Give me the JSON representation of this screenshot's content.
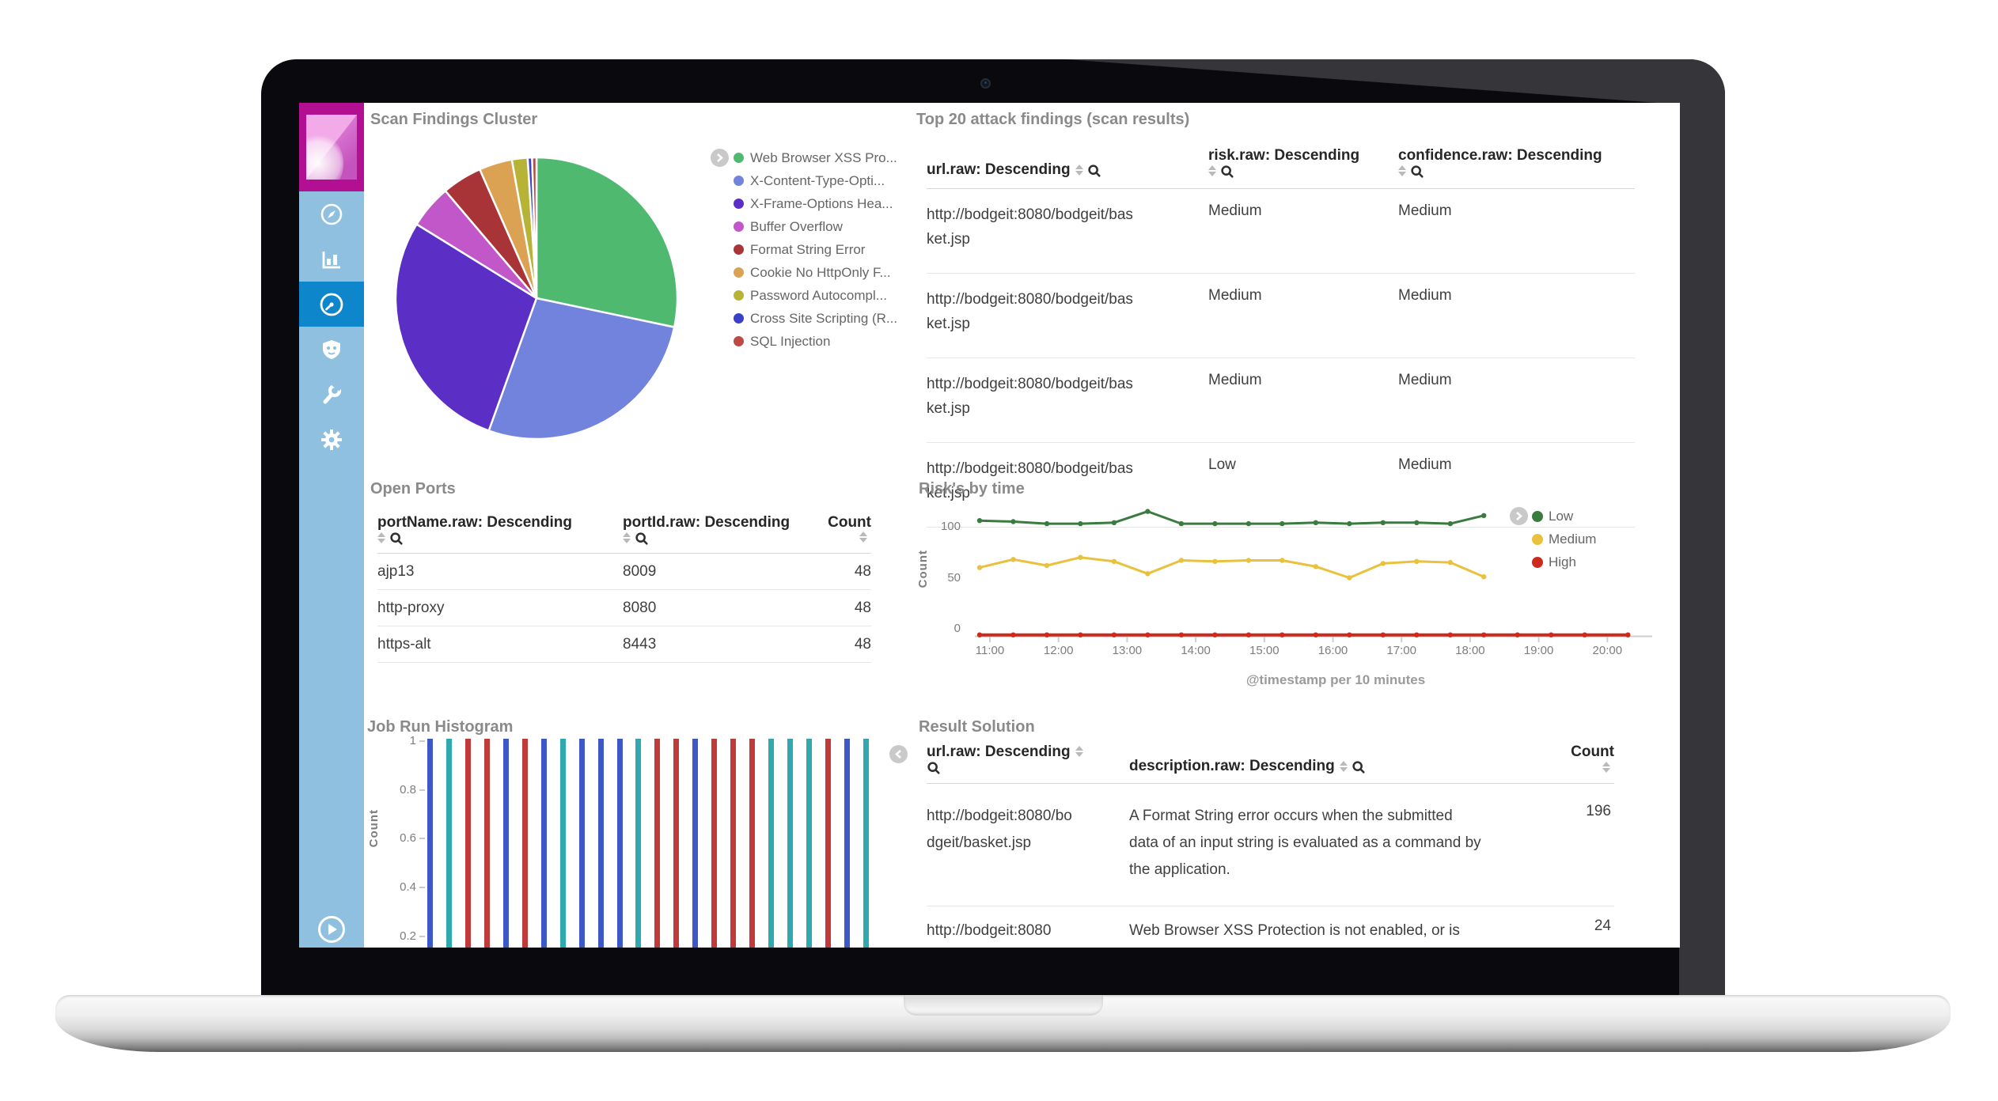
{
  "colors": {
    "sidebar_bg": "#8fc0e0",
    "sidebar_active": "#0d86cb",
    "logo_magenta": "#b20f92",
    "panel_title": "#8a8a8a"
  },
  "sidebar": {
    "icons": [
      "compass-icon",
      "bar-chart-icon",
      "gauge-icon",
      "badge-icon",
      "wrench-icon",
      "gear-icon"
    ],
    "active_index": 2
  },
  "panels": {
    "scan_findings": {
      "title": "Scan Findings Cluster"
    },
    "top20": {
      "title": "Top 20 attack findings (scan results)",
      "headers": {
        "url": "url.raw: Descending",
        "risk": "risk.raw: Descending",
        "confidence": "confidence.raw: Descending"
      },
      "rows": [
        {
          "url": "http://bodgeit:8080/bodgeit/basket.jsp",
          "risk": "Medium",
          "confidence": "Medium"
        },
        {
          "url": "http://bodgeit:8080/bodgeit/basket.jsp",
          "risk": "Medium",
          "confidence": "Medium"
        },
        {
          "url": "http://bodgeit:8080/bodgeit/basket.jsp",
          "risk": "Medium",
          "confidence": "Medium"
        },
        {
          "url": "http://bodgeit:8080/bodgeit/basket.jsp",
          "risk": "Low",
          "confidence": "Medium"
        }
      ]
    },
    "open_ports": {
      "title": "Open Ports",
      "headers": {
        "port_name": "portName.raw: Descending",
        "port_id": "portId.raw: Descending",
        "count": "Count"
      },
      "rows": [
        {
          "port_name": "ajp13",
          "port_id": "8009",
          "count": "48"
        },
        {
          "port_name": "http-proxy",
          "port_id": "8080",
          "count": "48"
        },
        {
          "port_name": "https-alt",
          "port_id": "8443",
          "count": "48"
        }
      ]
    },
    "risks": {
      "title": "Risk's by time"
    },
    "histogram": {
      "title": "Job Run Histogram"
    },
    "result_solution": {
      "title": "Result Solution",
      "headers": {
        "url": "url.raw: Descending",
        "description": "description.raw: Descending",
        "count": "Count"
      },
      "rows": [
        {
          "url": "http://bodgeit:8080/bodgeit/basket.jsp",
          "description": "A Format String error occurs when the submitted data of an input string is evaluated as a command by the application.",
          "count": "196"
        },
        {
          "url": "http://bodgeit:8080",
          "description": "Web Browser XSS Protection is not enabled, or is",
          "count": "24"
        }
      ]
    }
  },
  "chart_data": [
    {
      "type": "pie",
      "title": "Scan Findings Cluster",
      "labels": [
        "Web Browser XSS Pro...",
        "X-Content-Type-Opti...",
        "X-Frame-Options Hea...",
        "Buffer Overflow",
        "Format String Error",
        "Cookie No HttpOnly F...",
        "Password Autocompl...",
        "Cross Site Scripting (R...",
        "SQL Injection"
      ],
      "values": [
        28.3,
        27.2,
        28.3,
        5.0,
        4.6,
        3.8,
        1.8,
        0.5,
        0.5
      ],
      "colors": [
        "#4fba6f",
        "#7183dc",
        "#5b2ec5",
        "#c157c8",
        "#a93438",
        "#dca254",
        "#b7b336",
        "#3a41c8",
        "#bd4a47"
      ],
      "legend_position": "right"
    },
    {
      "type": "line",
      "title": "Risk's by time",
      "xlabel": "@timestamp per 10 minutes",
      "ylabel": "Count",
      "x_ticks": [
        "11:00",
        "12:00",
        "13:00",
        "14:00",
        "15:00",
        "16:00",
        "17:00",
        "18:00",
        "19:00",
        "20:00"
      ],
      "y_ticks": [
        0,
        50,
        100
      ],
      "ylim": [
        0,
        130
      ],
      "legend_position": "top-right",
      "series": [
        {
          "name": "Low",
          "color": "#3a7c40",
          "x": [
            10.85,
            11.34,
            11.83,
            12.32,
            12.81,
            13.3,
            13.79,
            14.28,
            14.77,
            15.26,
            15.75,
            16.24,
            16.73,
            17.22,
            17.71,
            18.2
          ],
          "y": [
            113,
            112,
            110,
            110,
            111,
            122,
            110,
            110,
            110,
            110,
            111,
            110,
            111,
            111,
            110,
            118
          ]
        },
        {
          "name": "Medium",
          "color": "#e9c13d",
          "x": [
            10.85,
            11.34,
            11.83,
            12.32,
            12.81,
            13.3,
            13.79,
            14.28,
            14.77,
            15.26,
            15.75,
            16.24,
            16.73,
            17.22,
            17.71,
            18.2
          ],
          "y": [
            67,
            75,
            69,
            77,
            73,
            61,
            74,
            73,
            74,
            74,
            68,
            57,
            71,
            73,
            72,
            58
          ]
        },
        {
          "name": "High",
          "color": "#cb2a1d",
          "x": [
            10.85,
            11.34,
            11.83,
            12.32,
            12.81,
            13.3,
            13.79,
            14.28,
            14.77,
            15.26,
            15.75,
            16.24,
            16.73,
            17.22,
            17.71,
            18.2,
            18.69,
            19.18,
            19.67,
            20.3
          ],
          "y": [
            1,
            1,
            1,
            1,
            1,
            1,
            1,
            1,
            1,
            1,
            1,
            1,
            1,
            1,
            1,
            1,
            1,
            1,
            1,
            1
          ]
        }
      ]
    },
    {
      "type": "bar",
      "title": "Job Run Histogram",
      "ylabel": "Count",
      "y_ticks": [
        1,
        0.8,
        0.6,
        0.4,
        0.2
      ],
      "values": [
        1,
        1,
        1,
        1,
        1,
        1,
        1,
        1,
        1,
        1,
        1,
        1,
        1,
        1,
        1,
        1,
        1,
        1,
        1,
        1,
        1,
        1,
        1,
        1
      ],
      "colors": [
        "#3e57c6",
        "#2fa9ae",
        "#bf3a38",
        "#bf3a38",
        "#3e57c6",
        "#bf3a38",
        "#3e57c6",
        "#2fa9ae",
        "#3e57c6",
        "#3e57c6",
        "#3e57c6",
        "#2fa9ae",
        "#bf3a38",
        "#bf3a38",
        "#3e57c6",
        "#bf3a38",
        "#bf3a38",
        "#bf3a38",
        "#2fa9ae",
        "#2fa9ae",
        "#2fa9ae",
        "#bf3a38",
        "#3e57c6",
        "#2fa9ae"
      ]
    }
  ]
}
